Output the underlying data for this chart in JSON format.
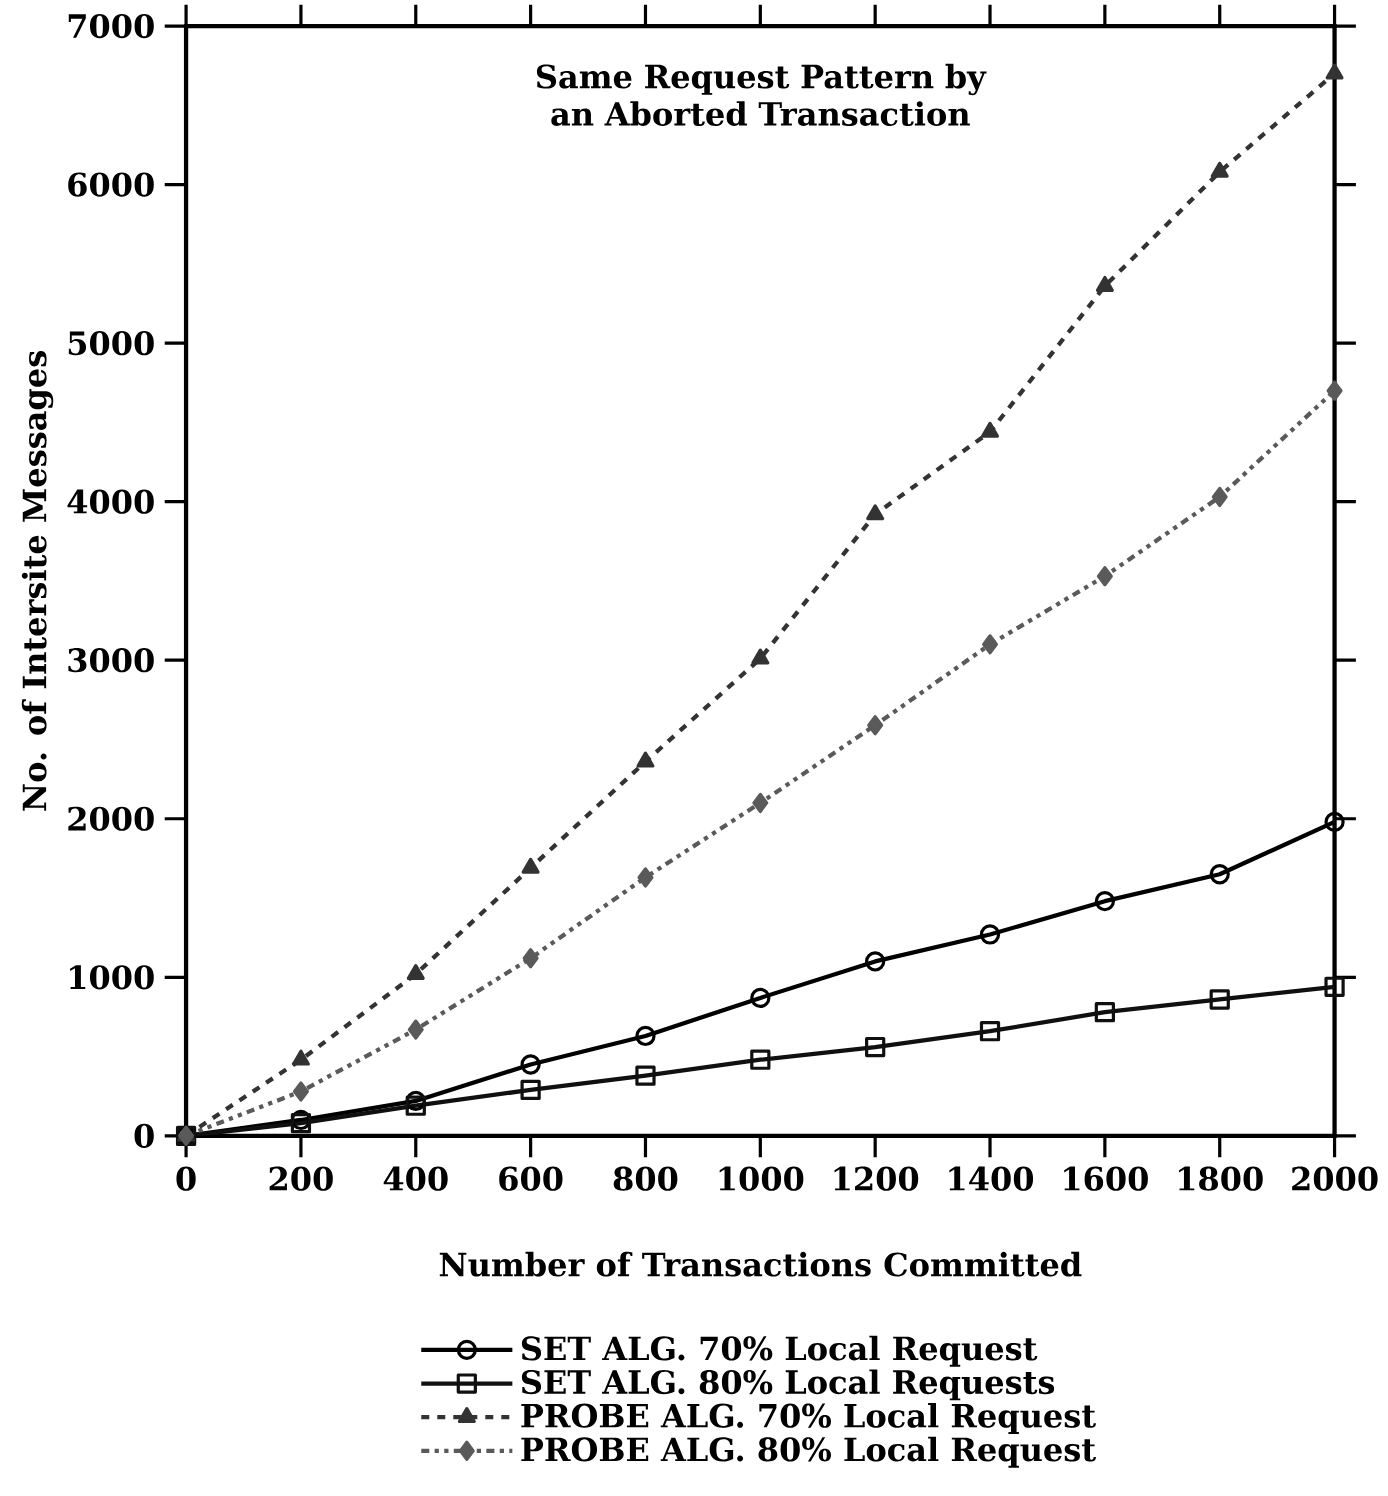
{
  "chart_data": {
    "type": "line",
    "title": "Same Request Pattern by an Aborted Transaction",
    "xlabel": "Number of Transactions Committed",
    "ylabel": "No. of Intersite Messages",
    "x": [
      0,
      200,
      400,
      600,
      800,
      1000,
      1200,
      1400,
      1600,
      1800,
      2000
    ],
    "series": [
      {
        "name": "SET ALG. 70% Local Request",
        "color": "#000000",
        "marker": "circle",
        "line_style": "solid",
        "values": [
          0,
          100,
          220,
          450,
          630,
          870,
          1100,
          1270,
          1480,
          1650,
          1980
        ]
      },
      {
        "name": "SET ALG. 80% Local Requests",
        "color": "#101010",
        "marker": "square",
        "line_style": "solid",
        "values": [
          0,
          80,
          190,
          290,
          380,
          480,
          560,
          660,
          780,
          860,
          940
        ]
      },
      {
        "name": "PROBE ALG. 70% Local Request",
        "color": "#333333",
        "marker": "triangle",
        "line_style": "dashed",
        "values": [
          0,
          480,
          1020,
          1690,
          2360,
          3010,
          3920,
          4440,
          5360,
          6080,
          6700
        ]
      },
      {
        "name": "PROBE ALG. 80% Local Request",
        "color": "#5a5a5a",
        "marker": "diamond",
        "line_style": "dotted",
        "values": [
          0,
          280,
          670,
          1120,
          1630,
          2100,
          2590,
          3100,
          3530,
          4030,
          4700
        ]
      }
    ],
    "xlim": [
      0,
      2000
    ],
    "ylim": [
      0,
      7000
    ],
    "xticks": [
      0,
      200,
      400,
      600,
      800,
      1000,
      1200,
      1400,
      1600,
      1800,
      2000
    ],
    "yticks": [
      0,
      1000,
      2000,
      3000,
      4000,
      5000,
      6000,
      7000
    ],
    "legend": "bottom"
  }
}
